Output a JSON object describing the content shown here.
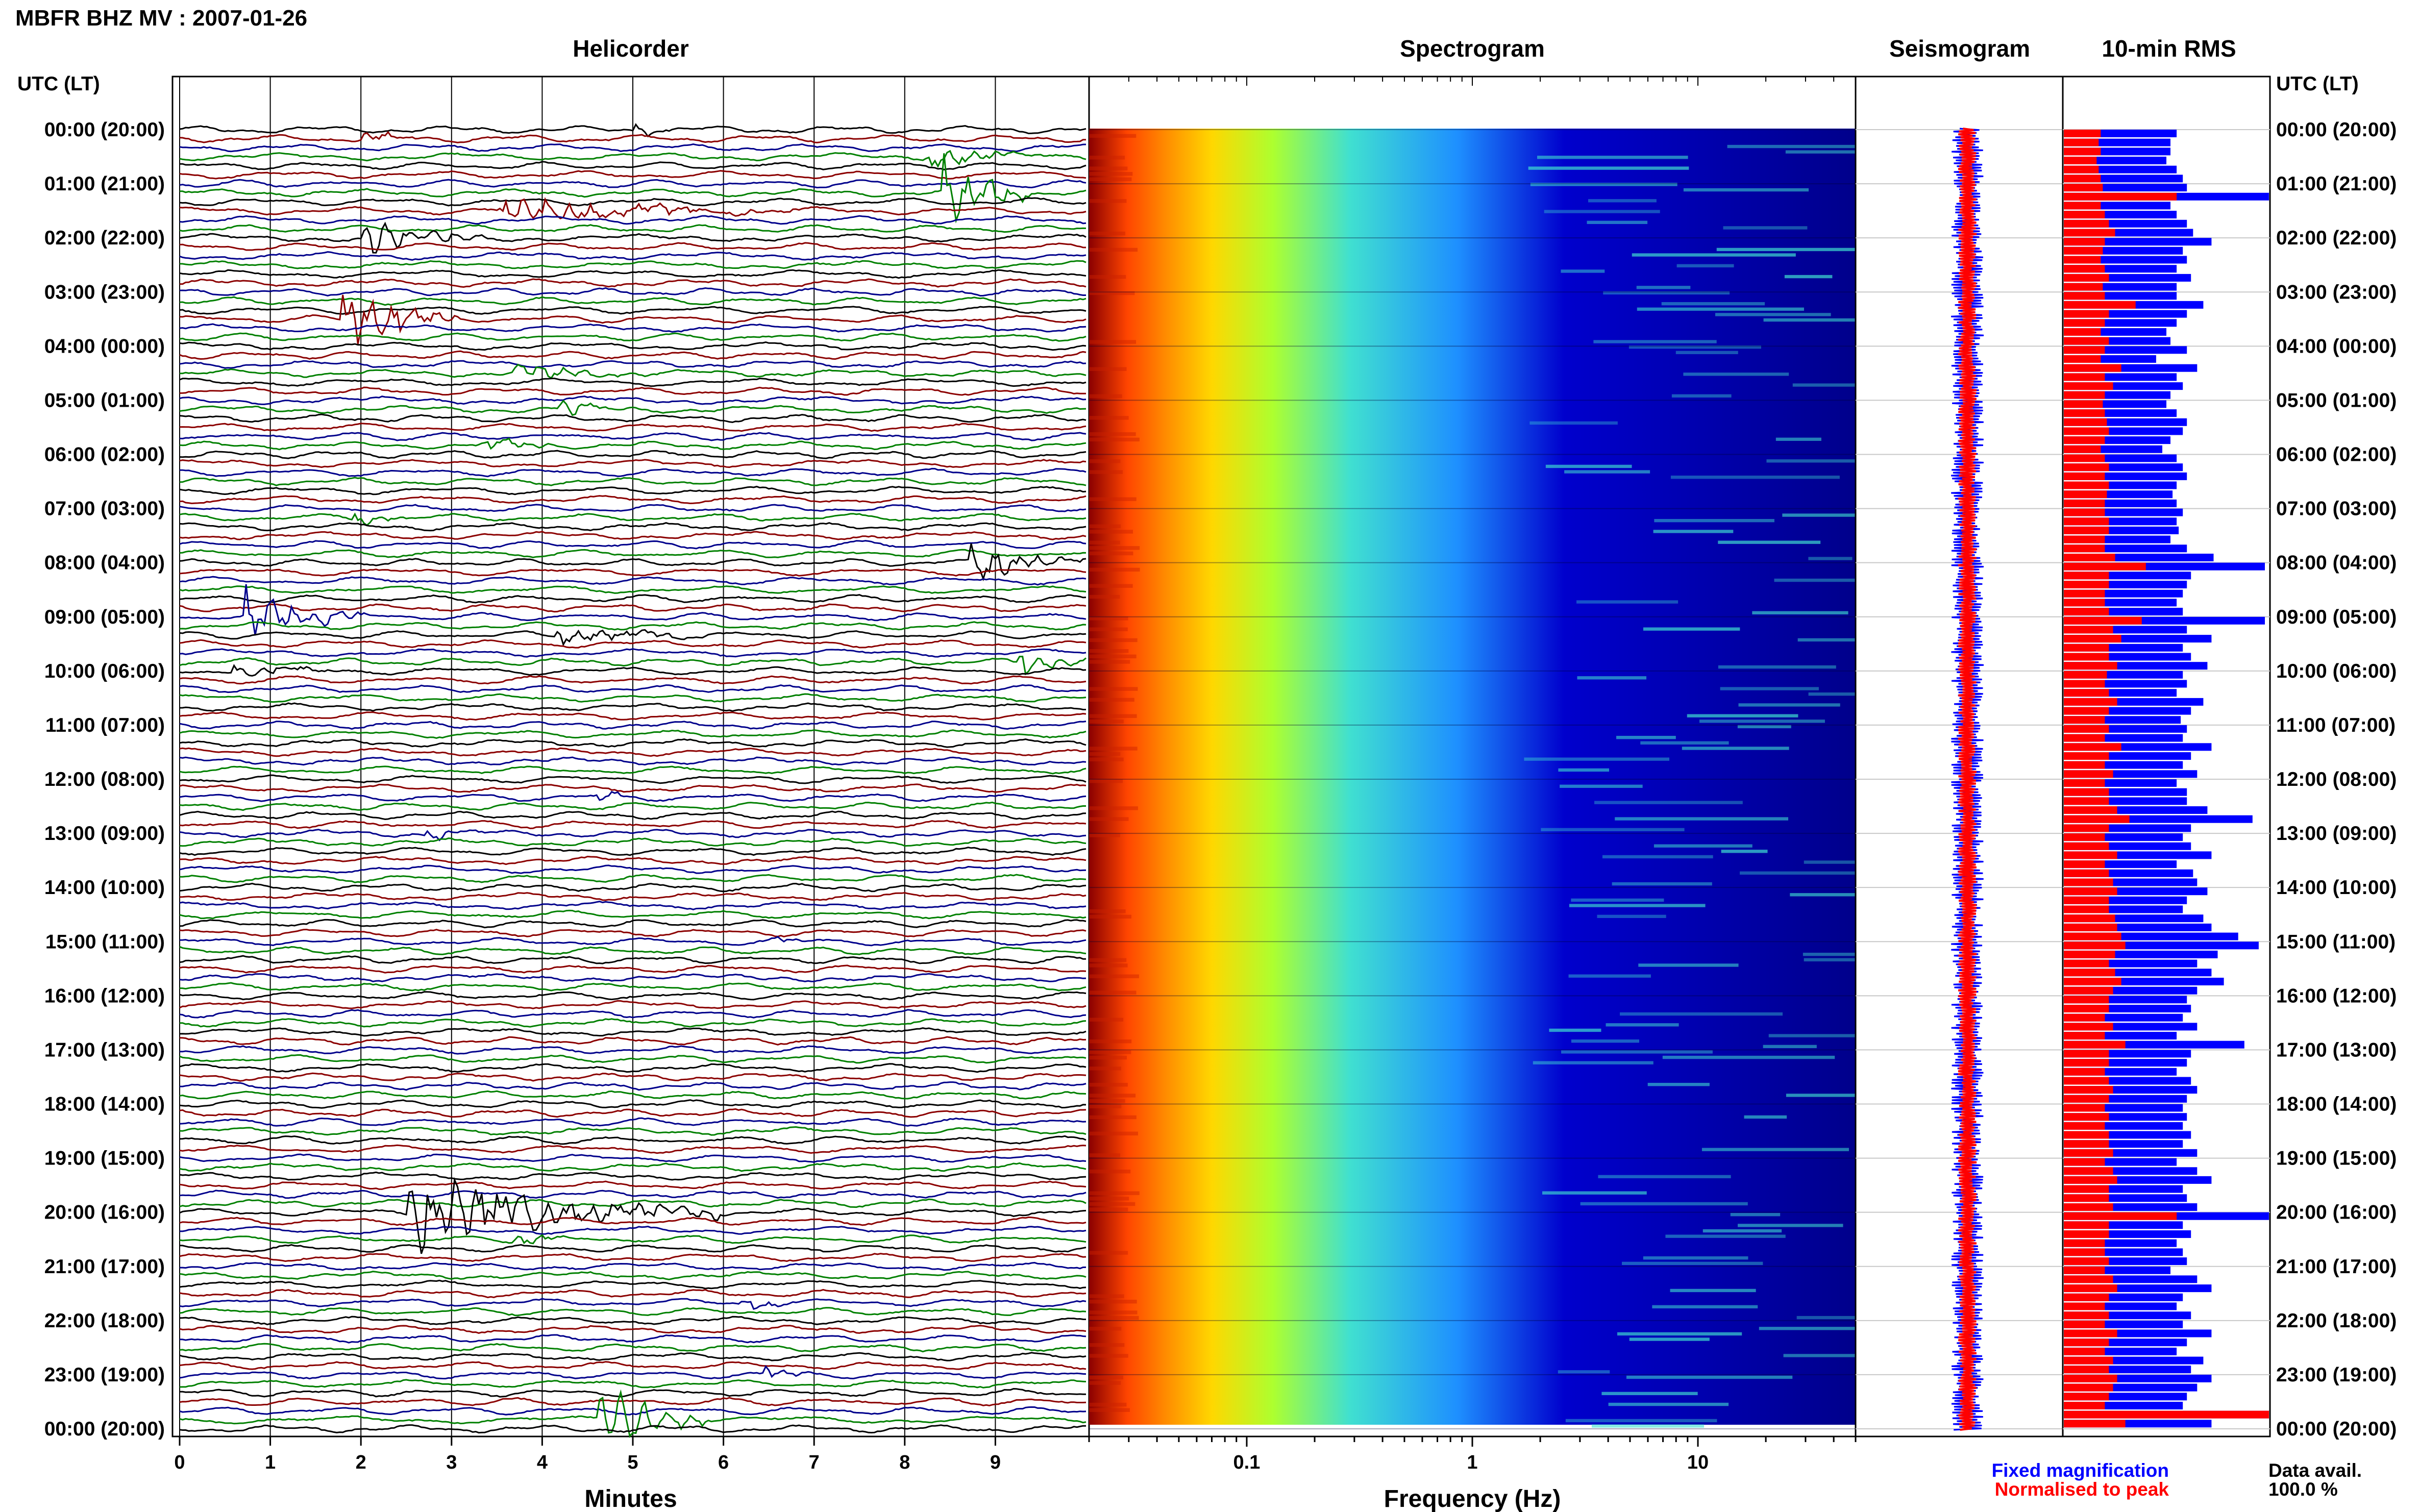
{
  "figure": {
    "title": "MBFR BHZ MV : 2007-01-26",
    "utc_lt_left": "UTC (LT)",
    "utc_lt_right": "UTC (LT)",
    "legend_fixed": "Fixed magnification",
    "legend_normalised": "Normalised to peak",
    "data_avail_label": "Data avail.",
    "data_avail_value": "100.0 %",
    "colors": {
      "trace_cycle": [
        "#000000",
        "#8b0000",
        "#00008b",
        "#008000"
      ],
      "rms_fixed": "#0000ff",
      "rms_normalised": "#ff0000",
      "legend_fixed": "#0000ff",
      "legend_normalised": "#ff0000"
    }
  },
  "hours": [
    "00:00 (20:00)",
    "01:00 (21:00)",
    "02:00 (22:00)",
    "03:00 (23:00)",
    "04:00 (00:00)",
    "05:00 (01:00)",
    "06:00 (02:00)",
    "07:00 (03:00)",
    "08:00 (04:00)",
    "09:00 (05:00)",
    "10:00 (06:00)",
    "11:00 (07:00)",
    "12:00 (08:00)",
    "13:00 (09:00)",
    "14:00 (10:00)",
    "15:00 (11:00)",
    "16:00 (12:00)",
    "17:00 (13:00)",
    "18:00 (14:00)",
    "19:00 (15:00)",
    "20:00 (16:00)",
    "21:00 (17:00)",
    "22:00 (18:00)",
    "23:00 (19:00)",
    "00:00 (20:00)"
  ],
  "chart_data": [
    {
      "panel": "helicorder",
      "type": "line",
      "title": "Helicorder",
      "xlabel": "Minutes",
      "x_ticks": [
        "0",
        "1",
        "2",
        "3",
        "4",
        "5",
        "6",
        "7",
        "8",
        "9"
      ],
      "xlim": [
        0,
        10
      ],
      "lines_per_hour": 6,
      "hours_shown": 24,
      "events": [
        {
          "line": 0,
          "minute": 5.1,
          "amp": 0.35,
          "dur": 0.4
        },
        {
          "line": 1,
          "minute": 2.1,
          "amp": 0.4,
          "dur": 0.6
        },
        {
          "line": 3,
          "minute": 8.3,
          "amp": 0.9,
          "dur": 1.2
        },
        {
          "line": 7,
          "minute": 8.5,
          "amp": 2.2,
          "dur": 1.0
        },
        {
          "line": 9,
          "minute": 3.6,
          "amp": 0.9,
          "dur": 3.2
        },
        {
          "line": 12,
          "minute": 2.1,
          "amp": 1.1,
          "dur": 1.3
        },
        {
          "line": 21,
          "minute": 1.9,
          "amp": 2.2,
          "dur": 1.2
        },
        {
          "line": 27,
          "minute": 3.8,
          "amp": 0.6,
          "dur": 1.4
        },
        {
          "line": 31,
          "minute": 4.3,
          "amp": 0.5,
          "dur": 0.8
        },
        {
          "line": 35,
          "minute": 3.4,
          "amp": 0.6,
          "dur": 0.8
        },
        {
          "line": 43,
          "minute": 2.0,
          "amp": 0.5,
          "dur": 0.5
        },
        {
          "line": 48,
          "minute": 8.8,
          "amp": 1.3,
          "dur": 1.4
        },
        {
          "line": 54,
          "minute": 0.8,
          "amp": 2.0,
          "dur": 1.3
        },
        {
          "line": 56,
          "minute": 4.2,
          "amp": 0.6,
          "dur": 1.8
        },
        {
          "line": 59,
          "minute": 9.3,
          "amp": 0.8,
          "dur": 0.8
        },
        {
          "line": 60,
          "minute": 0.7,
          "amp": 0.5,
          "dur": 1.1
        },
        {
          "line": 74,
          "minute": 4.6,
          "amp": 0.4,
          "dur": 0.6
        },
        {
          "line": 78,
          "minute": 2.8,
          "amp": 0.4,
          "dur": 0.5
        },
        {
          "line": 90,
          "minute": 6.6,
          "amp": 0.35,
          "dur": 0.5
        },
        {
          "line": 120,
          "minute": 2.6,
          "amp": 2.4,
          "dur": 3.4
        },
        {
          "line": 123,
          "minute": 3.8,
          "amp": 0.4,
          "dur": 0.6
        },
        {
          "line": 130,
          "minute": 6.3,
          "amp": 0.4,
          "dur": 0.5
        },
        {
          "line": 138,
          "minute": 6.5,
          "amp": 0.5,
          "dur": 0.6
        },
        {
          "line": 143,
          "minute": 4.7,
          "amp": 2.4,
          "dur": 1.2
        }
      ]
    },
    {
      "panel": "spectrogram",
      "type": "heatmap",
      "title": "Spectrogram",
      "xlabel": "Frequency (Hz)",
      "x_scale": "log",
      "xlim": [
        0.02,
        50
      ],
      "x_ticks": [
        "0.1",
        "1",
        "10"
      ],
      "colormap": [
        "#8b0000",
        "#ff4500",
        "#ff8c00",
        "#ffd700",
        "#adff2f",
        "#40e0d0",
        "#1e90ff",
        "#0000cd",
        "#00008b"
      ]
    },
    {
      "panel": "seismogram",
      "type": "line",
      "title": "Seismogram",
      "series": [
        {
          "name": "Fixed magnification",
          "color": "#0000ff"
        },
        {
          "name": "Normalised to peak",
          "color": "#ff0000"
        }
      ]
    },
    {
      "panel": "rms",
      "type": "bar",
      "title": "10-min RMS",
      "orientation": "horizontal",
      "bins_per_hour": 6,
      "series": [
        {
          "name": "Fixed magnification",
          "color": "#0000ff",
          "values": [
            0.55,
            0.52,
            0.52,
            0.5,
            0.55,
            0.58,
            0.6,
            1.0,
            0.52,
            0.55,
            0.6,
            0.63,
            0.72,
            0.58,
            0.6,
            0.55,
            0.62,
            0.55,
            0.55,
            0.68,
            0.6,
            0.55,
            0.5,
            0.52,
            0.6,
            0.45,
            0.65,
            0.55,
            0.58,
            0.52,
            0.5,
            0.55,
            0.6,
            0.58,
            0.52,
            0.48,
            0.55,
            0.58,
            0.6,
            0.55,
            0.53,
            0.55,
            0.58,
            0.55,
            0.56,
            0.52,
            0.6,
            0.73,
            0.98,
            0.62,
            0.6,
            0.58,
            0.55,
            0.58,
            0.98,
            0.6,
            0.72,
            0.58,
            0.62,
            0.7,
            0.58,
            0.6,
            0.55,
            0.68,
            0.62,
            0.57,
            0.6,
            0.58,
            0.72,
            0.62,
            0.58,
            0.65,
            0.55,
            0.6,
            0.6,
            0.7,
            0.92,
            0.62,
            0.58,
            0.62,
            0.72,
            0.55,
            0.63,
            0.65,
            0.7,
            0.6,
            0.58,
            0.68,
            0.72,
            0.85,
            0.95,
            0.75,
            0.65,
            0.72,
            0.78,
            0.65,
            0.6,
            0.62,
            0.58,
            0.65,
            0.55,
            0.88,
            0.62,
            0.6,
            0.55,
            0.62,
            0.65,
            0.6,
            0.58,
            0.6,
            0.58,
            0.62,
            0.58,
            0.65,
            0.55,
            0.65,
            0.72,
            0.58,
            0.6,
            0.65,
            1.0,
            0.58,
            0.62,
            0.55,
            0.58,
            0.6,
            0.52,
            0.65,
            0.72,
            0.58,
            0.55,
            0.62,
            0.58,
            0.72,
            0.6,
            0.55,
            0.68,
            0.62,
            0.72,
            0.65,
            0.6,
            0.58,
            1.0,
            0.72
          ]
        },
        {
          "name": "Normalised to peak",
          "color": "#ff0000",
          "values": [
            0.18,
            0.17,
            0.18,
            0.16,
            0.17,
            0.18,
            0.19,
            0.55,
            0.18,
            0.2,
            0.22,
            0.25,
            0.2,
            0.19,
            0.18,
            0.2,
            0.22,
            0.19,
            0.2,
            0.35,
            0.22,
            0.2,
            0.18,
            0.22,
            0.2,
            0.18,
            0.28,
            0.2,
            0.24,
            0.2,
            0.19,
            0.2,
            0.21,
            0.22,
            0.2,
            0.18,
            0.2,
            0.22,
            0.2,
            0.22,
            0.21,
            0.2,
            0.2,
            0.22,
            0.22,
            0.2,
            0.2,
            0.25,
            0.4,
            0.22,
            0.22,
            0.2,
            0.2,
            0.22,
            0.38,
            0.24,
            0.28,
            0.22,
            0.22,
            0.26,
            0.21,
            0.2,
            0.22,
            0.26,
            0.22,
            0.2,
            0.22,
            0.2,
            0.28,
            0.22,
            0.2,
            0.24,
            0.2,
            0.22,
            0.22,
            0.26,
            0.32,
            0.22,
            0.2,
            0.22,
            0.26,
            0.2,
            0.22,
            0.24,
            0.26,
            0.22,
            0.22,
            0.25,
            0.26,
            0.28,
            0.3,
            0.25,
            0.22,
            0.25,
            0.28,
            0.24,
            0.22,
            0.22,
            0.2,
            0.24,
            0.2,
            0.3,
            0.22,
            0.22,
            0.2,
            0.22,
            0.24,
            0.22,
            0.2,
            0.22,
            0.2,
            0.22,
            0.22,
            0.24,
            0.2,
            0.24,
            0.26,
            0.22,
            0.22,
            0.24,
            0.55,
            0.22,
            0.22,
            0.2,
            0.2,
            0.22,
            0.2,
            0.24,
            0.26,
            0.22,
            0.2,
            0.22,
            0.2,
            0.26,
            0.22,
            0.2,
            0.24,
            0.22,
            0.26,
            0.24,
            0.22,
            0.2,
            1.0,
            0.3
          ]
        }
      ]
    }
  ]
}
